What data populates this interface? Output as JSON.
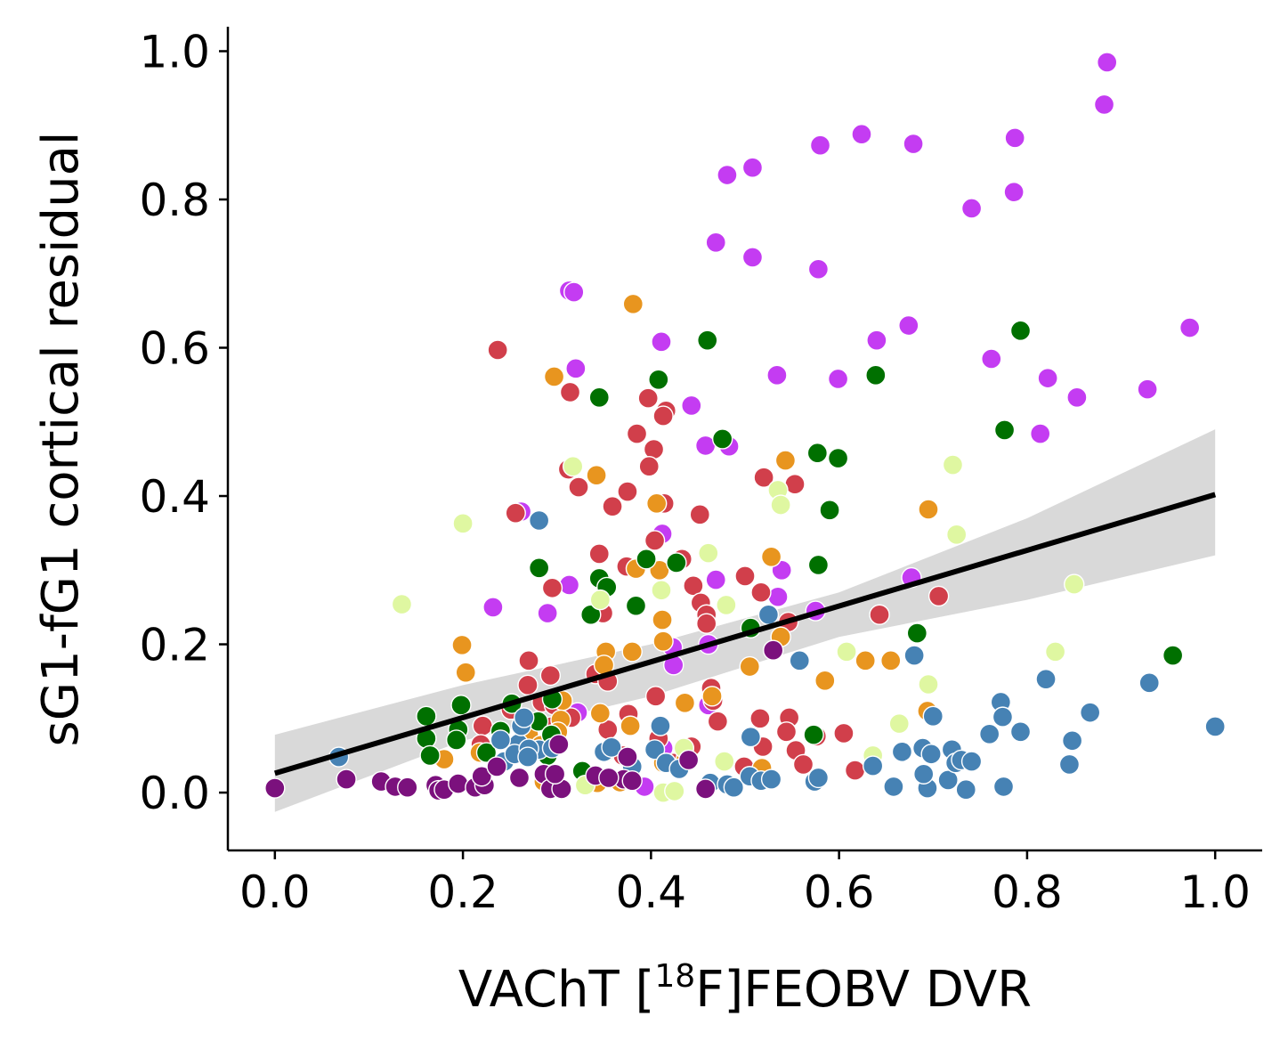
{
  "chart_data": {
    "type": "scatter",
    "xlabel_parts": {
      "pre": "VAChT [",
      "sup": "18",
      "post": "F]FEOBV DVR"
    },
    "ylabel": "sG1-fG1 cortical residual",
    "xlim": [
      -0.05,
      1.05
    ],
    "ylim": [
      -0.078,
      1.033
    ],
    "x_ticks": [
      "0.0",
      "0.2",
      "0.4",
      "0.6",
      "0.8",
      "1.0"
    ],
    "y_ticks": [
      "0.0",
      "0.2",
      "0.4",
      "0.6",
      "0.8",
      "1.0"
    ],
    "x_tick_values": [
      0.0,
      0.2,
      0.4,
      0.6,
      0.8,
      1.0
    ],
    "y_tick_values": [
      0.0,
      0.2,
      0.4,
      0.6,
      0.8,
      1.0
    ],
    "grid": false,
    "regression": {
      "x": [
        0.0,
        1.0
      ],
      "y": [
        0.026,
        0.402
      ],
      "ci_x": [
        0.0,
        0.2,
        0.4,
        0.5,
        0.6,
        0.8,
        1.0
      ],
      "ci_lower": [
        -0.026,
        0.07,
        0.13,
        0.17,
        0.21,
        0.26,
        0.32
      ],
      "ci_upper": [
        0.078,
        0.145,
        0.2,
        0.235,
        0.27,
        0.37,
        0.49
      ]
    },
    "series": [
      {
        "color": "#c43cf2",
        "points": [
          [
            0.885,
            0.985
          ],
          [
            0.882,
            0.928
          ],
          [
            0.624,
            0.888
          ],
          [
            0.58,
            0.873
          ],
          [
            0.679,
            0.875
          ],
          [
            0.787,
            0.883
          ],
          [
            0.508,
            0.843
          ],
          [
            0.481,
            0.833
          ],
          [
            0.786,
            0.81
          ],
          [
            0.741,
            0.788
          ],
          [
            0.469,
            0.742
          ],
          [
            0.508,
            0.722
          ],
          [
            0.578,
            0.706
          ],
          [
            0.313,
            0.677
          ],
          [
            0.318,
            0.675
          ],
          [
            0.973,
            0.627
          ],
          [
            0.674,
            0.63
          ],
          [
            0.64,
            0.61
          ],
          [
            0.411,
            0.608
          ],
          [
            0.762,
            0.585
          ],
          [
            0.32,
            0.572
          ],
          [
            0.534,
            0.563
          ],
          [
            0.822,
            0.559
          ],
          [
            0.599,
            0.558
          ],
          [
            0.928,
            0.544
          ],
          [
            0.853,
            0.533
          ],
          [
            0.443,
            0.522
          ],
          [
            0.814,
            0.484
          ],
          [
            0.458,
            0.468
          ],
          [
            0.483,
            0.467
          ],
          [
            0.262,
            0.379
          ],
          [
            0.412,
            0.349
          ],
          [
            0.539,
            0.3
          ],
          [
            0.469,
            0.287
          ],
          [
            0.677,
            0.29
          ],
          [
            0.313,
            0.28
          ],
          [
            0.535,
            0.264
          ],
          [
            0.232,
            0.25
          ],
          [
            0.575,
            0.245
          ],
          [
            0.29,
            0.242
          ],
          [
            0.423,
            0.196
          ],
          [
            0.461,
            0.2
          ],
          [
            0.424,
            0.172
          ],
          [
            0.322,
            0.108
          ],
          [
            0.461,
            0.118
          ],
          [
            0.413,
            0.06
          ],
          [
            0.393,
            0.008
          ]
        ]
      },
      {
        "color": "#d13f4b",
        "points": [
          [
            0.237,
            0.597
          ],
          [
            0.314,
            0.54
          ],
          [
            0.397,
            0.532
          ],
          [
            0.416,
            0.515
          ],
          [
            0.413,
            0.508
          ],
          [
            0.385,
            0.484
          ],
          [
            0.403,
            0.463
          ],
          [
            0.398,
            0.44
          ],
          [
            0.312,
            0.436
          ],
          [
            0.52,
            0.425
          ],
          [
            0.323,
            0.412
          ],
          [
            0.553,
            0.416
          ],
          [
            0.375,
            0.406
          ],
          [
            0.256,
            0.377
          ],
          [
            0.414,
            0.39
          ],
          [
            0.359,
            0.386
          ],
          [
            0.452,
            0.375
          ],
          [
            0.404,
            0.34
          ],
          [
            0.345,
            0.322
          ],
          [
            0.374,
            0.305
          ],
          [
            0.433,
            0.315
          ],
          [
            0.5,
            0.292
          ],
          [
            0.295,
            0.276
          ],
          [
            0.445,
            0.279
          ],
          [
            0.517,
            0.27
          ],
          [
            0.706,
            0.265
          ],
          [
            0.453,
            0.256
          ],
          [
            0.349,
            0.242
          ],
          [
            0.459,
            0.24
          ],
          [
            0.643,
            0.24
          ],
          [
            0.459,
            0.228
          ],
          [
            0.546,
            0.23
          ],
          [
            0.27,
            0.178
          ],
          [
            0.293,
            0.158
          ],
          [
            0.341,
            0.16
          ],
          [
            0.354,
            0.15
          ],
          [
            0.269,
            0.145
          ],
          [
            0.405,
            0.13
          ],
          [
            0.464,
            0.141
          ],
          [
            0.466,
            0.124
          ],
          [
            0.284,
            0.122
          ],
          [
            0.297,
            0.118
          ],
          [
            0.251,
            0.112
          ],
          [
            0.376,
            0.106
          ],
          [
            0.315,
            0.101
          ],
          [
            0.516,
            0.1
          ],
          [
            0.547,
            0.101
          ],
          [
            0.294,
            0.089
          ],
          [
            0.354,
            0.085
          ],
          [
            0.471,
            0.096
          ],
          [
            0.544,
            0.082
          ],
          [
            0.221,
            0.09
          ],
          [
            0.576,
            0.076
          ],
          [
            0.605,
            0.08
          ],
          [
            0.408,
            0.073
          ],
          [
            0.519,
            0.062
          ],
          [
            0.443,
            0.062
          ],
          [
            0.554,
            0.057
          ],
          [
            0.499,
            0.035
          ],
          [
            0.562,
            0.038
          ],
          [
            0.617,
            0.03
          ],
          [
            0.424,
            0.04
          ],
          [
            0.37,
            0.05
          ],
          [
            0.27,
            0.052
          ],
          [
            0.219,
            0.065
          ]
        ]
      },
      {
        "color": "#e8951f",
        "points": [
          [
            0.381,
            0.659
          ],
          [
            0.297,
            0.561
          ],
          [
            0.342,
            0.428
          ],
          [
            0.543,
            0.448
          ],
          [
            0.406,
            0.39
          ],
          [
            0.695,
            0.382
          ],
          [
            0.528,
            0.318
          ],
          [
            0.384,
            0.302
          ],
          [
            0.409,
            0.3
          ],
          [
            0.412,
            0.233
          ],
          [
            0.538,
            0.21
          ],
          [
            0.199,
            0.199
          ],
          [
            0.413,
            0.204
          ],
          [
            0.352,
            0.19
          ],
          [
            0.38,
            0.19
          ],
          [
            0.203,
            0.162
          ],
          [
            0.35,
            0.172
          ],
          [
            0.628,
            0.178
          ],
          [
            0.655,
            0.178
          ],
          [
            0.505,
            0.17
          ],
          [
            0.585,
            0.151
          ],
          [
            0.306,
            0.124
          ],
          [
            0.436,
            0.121
          ],
          [
            0.465,
            0.13
          ],
          [
            0.346,
            0.107
          ],
          [
            0.694,
            0.11
          ],
          [
            0.304,
            0.098
          ],
          [
            0.378,
            0.09
          ],
          [
            0.301,
            0.082
          ],
          [
            0.27,
            0.078
          ],
          [
            0.283,
            0.064
          ],
          [
            0.218,
            0.054
          ],
          [
            0.351,
            0.054
          ],
          [
            0.437,
            0.045
          ],
          [
            0.413,
            0.04
          ],
          [
            0.518,
            0.033
          ],
          [
            0.18,
            0.045
          ],
          [
            0.286,
            0.015
          ],
          [
            0.343,
            0.013
          ],
          [
            0.367,
            0.014
          ]
        ]
      },
      {
        "color": "#007000",
        "points": [
          [
            0.46,
            0.61
          ],
          [
            0.793,
            0.623
          ],
          [
            0.639,
            0.563
          ],
          [
            0.408,
            0.557
          ],
          [
            0.345,
            0.533
          ],
          [
            0.776,
            0.489
          ],
          [
            0.476,
            0.477
          ],
          [
            0.577,
            0.458
          ],
          [
            0.599,
            0.451
          ],
          [
            0.59,
            0.381
          ],
          [
            0.395,
            0.315
          ],
          [
            0.427,
            0.31
          ],
          [
            0.281,
            0.303
          ],
          [
            0.578,
            0.307
          ],
          [
            0.345,
            0.289
          ],
          [
            0.353,
            0.277
          ],
          [
            0.336,
            0.24
          ],
          [
            0.384,
            0.252
          ],
          [
            0.683,
            0.215
          ],
          [
            0.506,
            0.222
          ],
          [
            0.955,
            0.185
          ],
          [
            0.252,
            0.12
          ],
          [
            0.198,
            0.118
          ],
          [
            0.295,
            0.126
          ],
          [
            0.161,
            0.103
          ],
          [
            0.28,
            0.096
          ],
          [
            0.195,
            0.085
          ],
          [
            0.24,
            0.083
          ],
          [
            0.161,
            0.073
          ],
          [
            0.193,
            0.071
          ],
          [
            0.225,
            0.054
          ],
          [
            0.165,
            0.05
          ],
          [
            0.294,
            0.078
          ],
          [
            0.573,
            0.078
          ],
          [
            0.29,
            0.05
          ],
          [
            0.327,
            0.029
          ]
        ]
      },
      {
        "color": "#dff7a1",
        "points": [
          [
            0.2,
            0.363
          ],
          [
            0.317,
            0.44
          ],
          [
            0.721,
            0.442
          ],
          [
            0.535,
            0.408
          ],
          [
            0.538,
            0.388
          ],
          [
            0.461,
            0.323
          ],
          [
            0.725,
            0.348
          ],
          [
            0.411,
            0.273
          ],
          [
            0.85,
            0.281
          ],
          [
            0.135,
            0.254
          ],
          [
            0.346,
            0.26
          ],
          [
            0.48,
            0.253
          ],
          [
            0.608,
            0.19
          ],
          [
            0.83,
            0.19
          ],
          [
            0.695,
            0.146
          ],
          [
            0.435,
            0.06
          ],
          [
            0.664,
            0.093
          ],
          [
            0.636,
            0.05
          ],
          [
            0.478,
            0.042
          ],
          [
            0.33,
            0.01
          ],
          [
            0.413,
            0.0
          ],
          [
            0.425,
            0.002
          ]
        ]
      },
      {
        "color": "#4682b4",
        "points": [
          [
            0.281,
            0.367
          ],
          [
            0.525,
            0.24
          ],
          [
            0.558,
            0.178
          ],
          [
            0.68,
            0.185
          ],
          [
            0.82,
            0.153
          ],
          [
            0.93,
            0.148
          ],
          [
            1.0,
            0.089
          ],
          [
            0.772,
            0.122
          ],
          [
            0.774,
            0.102
          ],
          [
            0.867,
            0.108
          ],
          [
            0.793,
            0.082
          ],
          [
            0.848,
            0.07
          ],
          [
            0.76,
            0.079
          ],
          [
            0.7,
            0.103
          ],
          [
            0.506,
            0.075
          ],
          [
            0.068,
            0.048
          ],
          [
            0.244,
            0.042
          ],
          [
            0.259,
            0.066
          ],
          [
            0.262,
            0.09
          ],
          [
            0.265,
            0.101
          ],
          [
            0.24,
            0.071
          ],
          [
            0.281,
            0.058
          ],
          [
            0.255,
            0.052
          ],
          [
            0.27,
            0.059
          ],
          [
            0.295,
            0.06
          ],
          [
            0.269,
            0.048
          ],
          [
            0.35,
            0.055
          ],
          [
            0.358,
            0.061
          ],
          [
            0.404,
            0.058
          ],
          [
            0.41,
            0.09
          ],
          [
            0.416,
            0.04
          ],
          [
            0.43,
            0.032
          ],
          [
            0.463,
            0.013
          ],
          [
            0.481,
            0.011
          ],
          [
            0.488,
            0.007
          ],
          [
            0.505,
            0.022
          ],
          [
            0.517,
            0.016
          ],
          [
            0.528,
            0.018
          ],
          [
            0.574,
            0.015
          ],
          [
            0.578,
            0.02
          ],
          [
            0.636,
            0.036
          ],
          [
            0.658,
            0.008
          ],
          [
            0.667,
            0.055
          ],
          [
            0.689,
            0.06
          ],
          [
            0.694,
            0.006
          ],
          [
            0.698,
            0.052
          ],
          [
            0.716,
            0.017
          ],
          [
            0.72,
            0.058
          ],
          [
            0.724,
            0.04
          ],
          [
            0.73,
            0.044
          ],
          [
            0.735,
            0.004
          ],
          [
            0.741,
            0.042
          ],
          [
            0.775,
            0.008
          ],
          [
            0.845,
            0.038
          ],
          [
            0.69,
            0.025
          ],
          [
            0.38,
            0.035
          ]
        ]
      },
      {
        "color": "#7b117d",
        "points": [
          [
            0.0,
            0.006
          ],
          [
            0.076,
            0.018
          ],
          [
            0.113,
            0.015
          ],
          [
            0.128,
            0.008
          ],
          [
            0.141,
            0.007
          ],
          [
            0.171,
            0.01
          ],
          [
            0.174,
            0.003
          ],
          [
            0.18,
            0.004
          ],
          [
            0.195,
            0.012
          ],
          [
            0.213,
            0.007
          ],
          [
            0.223,
            0.01
          ],
          [
            0.22,
            0.022
          ],
          [
            0.236,
            0.035
          ],
          [
            0.26,
            0.02
          ],
          [
            0.286,
            0.025
          ],
          [
            0.293,
            0.005
          ],
          [
            0.305,
            0.005
          ],
          [
            0.298,
            0.025
          ],
          [
            0.341,
            0.023
          ],
          [
            0.371,
            0.018
          ],
          [
            0.375,
            0.048
          ],
          [
            0.38,
            0.016
          ],
          [
            0.458,
            0.005
          ],
          [
            0.302,
            0.065
          ],
          [
            0.53,
            0.192
          ],
          [
            0.44,
            0.044
          ],
          [
            0.355,
            0.02
          ]
        ]
      }
    ]
  }
}
